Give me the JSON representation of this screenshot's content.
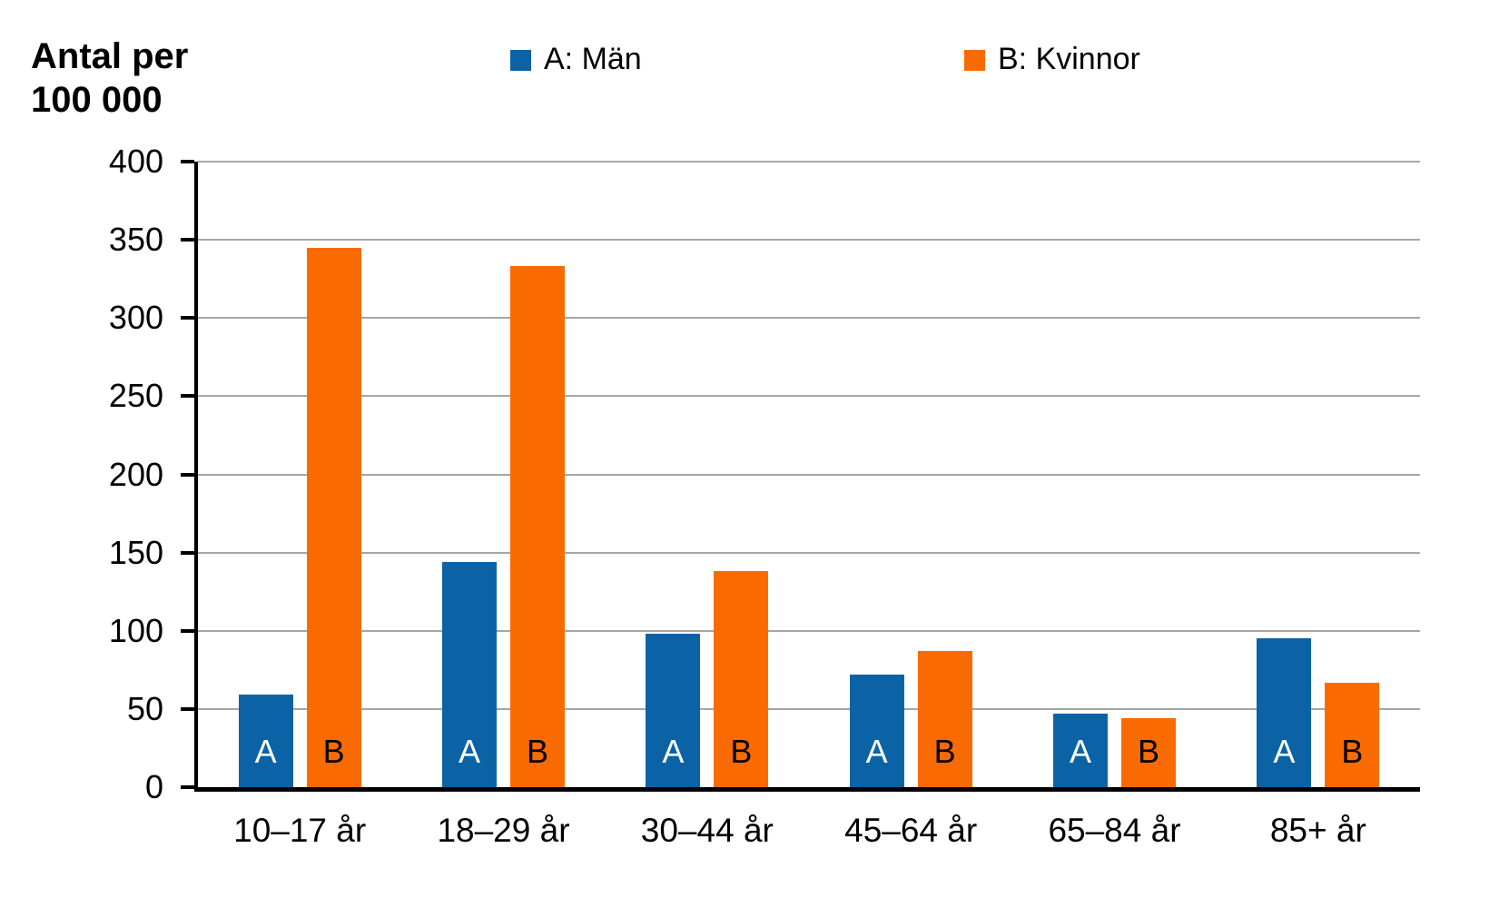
{
  "chart_data": {
    "type": "bar",
    "ylabel": "Antal per 100 000",
    "ylabel_lines": [
      "Antal per",
      "100 000"
    ],
    "categories": [
      "10–17 år",
      "18–29 år",
      "30–44 år",
      "45–64 år",
      "65–84 år",
      "85+ år"
    ],
    "series": [
      {
        "name": "A: Män",
        "bar_letter": "A",
        "color": "#0b63a6",
        "letter_color": "#ffffff",
        "values": [
          59,
          144,
          98,
          72,
          47,
          95
        ]
      },
      {
        "name": "B: Kvinnor",
        "bar_letter": "B",
        "color": "#f96b00",
        "letter_color": "#000000",
        "values": [
          345,
          333,
          138,
          87,
          44,
          67
        ]
      }
    ],
    "ylim": [
      0,
      400
    ],
    "yticks": [
      0,
      50,
      100,
      150,
      200,
      250,
      300,
      350,
      400
    ],
    "grid": true,
    "legend_position": "top",
    "axis_color": "#000000",
    "gridline_color": "#a6a6a6"
  }
}
